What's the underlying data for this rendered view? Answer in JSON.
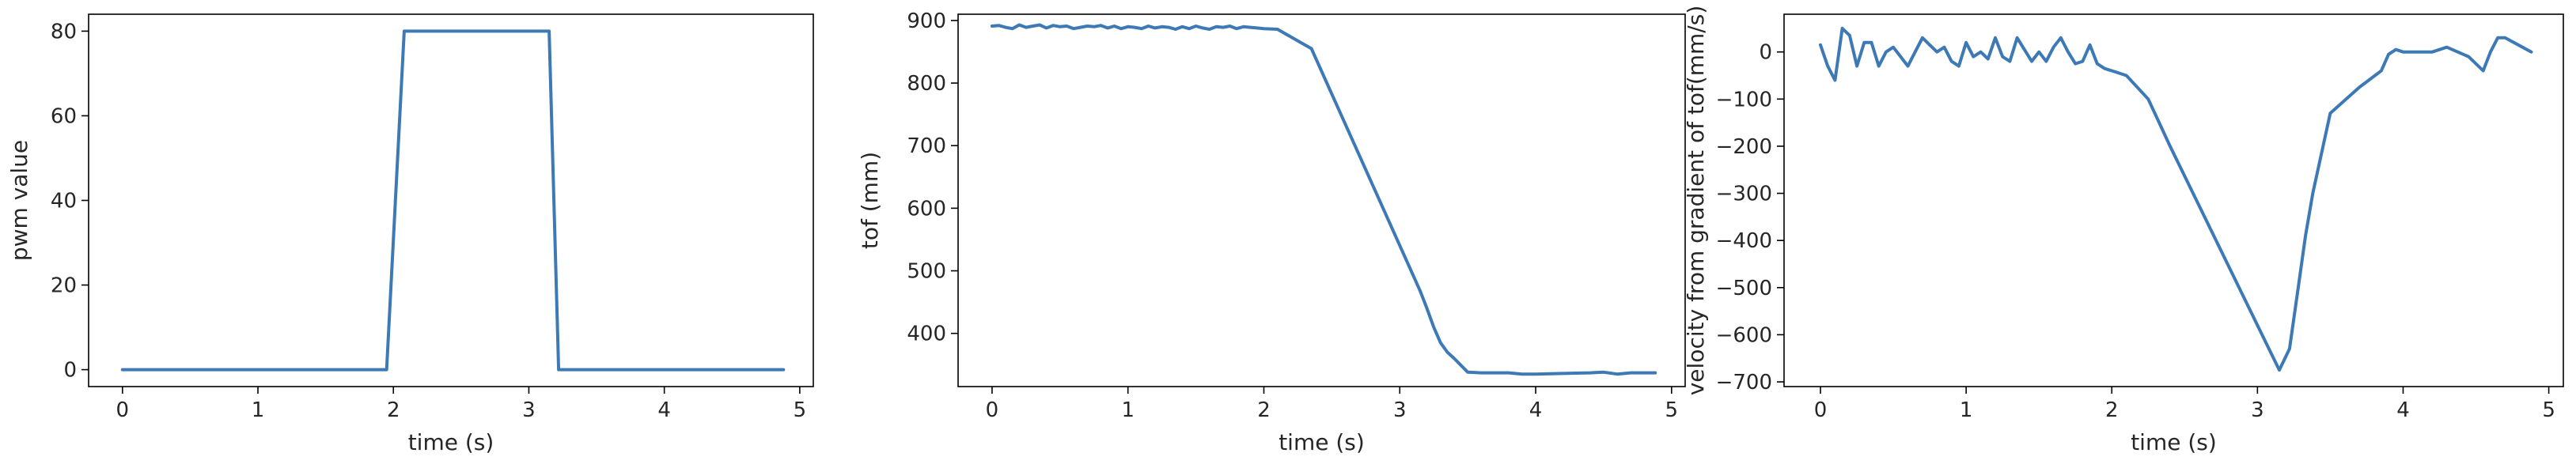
{
  "chart_data": [
    {
      "type": "line",
      "xlabel": "time (s)",
      "ylabel": "pwm value",
      "xlim": [
        -0.25,
        5.1
      ],
      "ylim": [
        -4,
        84
      ],
      "xticks": [
        0,
        1,
        2,
        3,
        4,
        5
      ],
      "yticks": [
        0,
        20,
        40,
        60,
        80
      ],
      "grid": false,
      "color": "#3d7ab5",
      "x": [
        0,
        1.95,
        2.08,
        3.15,
        3.22,
        4.88
      ],
      "y": [
        0,
        0,
        80,
        80,
        0,
        0
      ]
    },
    {
      "type": "line",
      "xlabel": "time (s)",
      "ylabel": "tof (mm)",
      "xlim": [
        -0.25,
        5.1
      ],
      "ylim": [
        315,
        910
      ],
      "xticks": [
        0,
        1,
        2,
        3,
        4,
        5
      ],
      "yticks": [
        400,
        500,
        600,
        700,
        800,
        900
      ],
      "grid": false,
      "color": "#3d7ab5",
      "x": [
        0,
        0.05,
        0.1,
        0.15,
        0.2,
        0.25,
        0.3,
        0.35,
        0.4,
        0.45,
        0.5,
        0.55,
        0.6,
        0.65,
        0.7,
        0.75,
        0.8,
        0.85,
        0.9,
        0.95,
        1.0,
        1.05,
        1.1,
        1.15,
        1.2,
        1.25,
        1.3,
        1.35,
        1.4,
        1.45,
        1.5,
        1.55,
        1.6,
        1.65,
        1.7,
        1.75,
        1.8,
        1.85,
        1.9,
        1.95,
        2.0,
        2.1,
        2.35,
        3.15,
        3.2,
        3.25,
        3.3,
        3.35,
        3.4,
        3.5,
        3.6,
        3.8,
        3.9,
        4.0,
        4.2,
        4.4,
        4.5,
        4.6,
        4.7,
        4.88
      ],
      "y": [
        891,
        892,
        889,
        887,
        893,
        889,
        891,
        893,
        888,
        892,
        890,
        891,
        887,
        889,
        891,
        890,
        892,
        888,
        891,
        887,
        890,
        889,
        887,
        891,
        888,
        890,
        889,
        886,
        890,
        887,
        891,
        888,
        886,
        890,
        889,
        891,
        887,
        890,
        889,
        888,
        887,
        886,
        855,
        468,
        440,
        410,
        385,
        370,
        360,
        338,
        337,
        337,
        335,
        335,
        336,
        337,
        338,
        335,
        337,
        337
      ]
    },
    {
      "type": "line",
      "xlabel": "time (s)",
      "ylabel": "velocity from gradient of tof(mm/s)",
      "xlim": [
        -0.25,
        5.1
      ],
      "ylim": [
        -710,
        80
      ],
      "xticks": [
        0,
        1,
        2,
        3,
        4,
        5
      ],
      "yticks": [
        -700,
        -600,
        -500,
        -400,
        -300,
        -200,
        -100,
        0
      ],
      "grid": false,
      "color": "#3d7ab5",
      "x": [
        0,
        0.05,
        0.1,
        0.15,
        0.2,
        0.25,
        0.3,
        0.35,
        0.4,
        0.45,
        0.5,
        0.6,
        0.7,
        0.75,
        0.8,
        0.85,
        0.9,
        0.95,
        1.0,
        1.05,
        1.1,
        1.15,
        1.2,
        1.25,
        1.3,
        1.35,
        1.4,
        1.45,
        1.5,
        1.55,
        1.6,
        1.65,
        1.7,
        1.75,
        1.8,
        1.85,
        1.9,
        1.95,
        2.0,
        2.1,
        2.25,
        2.4,
        3.15,
        3.22,
        3.28,
        3.33,
        3.38,
        3.5,
        3.7,
        3.85,
        3.9,
        3.95,
        4.0,
        4.2,
        4.3,
        4.45,
        4.55,
        4.6,
        4.65,
        4.7,
        4.88
      ],
      "y": [
        15,
        -30,
        -60,
        50,
        35,
        -30,
        20,
        20,
        -30,
        0,
        10,
        -30,
        30,
        15,
        0,
        10,
        -20,
        -30,
        20,
        -10,
        0,
        -15,
        30,
        -10,
        -20,
        30,
        5,
        -20,
        0,
        -20,
        10,
        30,
        0,
        -25,
        -20,
        15,
        -25,
        -35,
        -40,
        -50,
        -100,
        -200,
        -675,
        -630,
        -500,
        -390,
        -300,
        -130,
        -75,
        -40,
        -5,
        5,
        0,
        0,
        10,
        -10,
        -40,
        0,
        30,
        30,
        0
      ]
    }
  ]
}
